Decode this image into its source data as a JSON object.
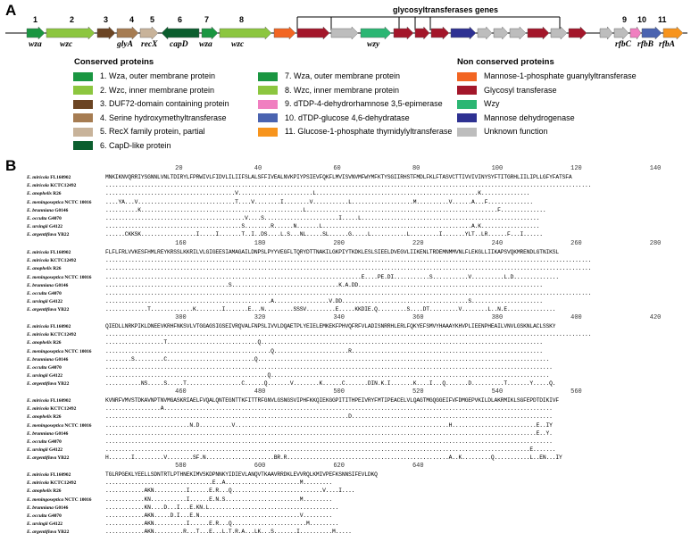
{
  "panel_a": {
    "letter": "A",
    "cluster_title": "glycosyltransferases genes",
    "gene_numbers": [
      "1",
      "2",
      "3",
      "4",
      "5",
      "6",
      "7",
      "8",
      "9",
      "10",
      "11"
    ],
    "gene_names": [
      "wza",
      "wzc",
      "glyA",
      "recX",
      "capD",
      "wza",
      "wzc",
      "wzy",
      "rfbC",
      "rfbB",
      "rfbA"
    ],
    "conserved_title": "Conserved proteins",
    "conserved": [
      {
        "label": "1. Wza, outer membrane protein",
        "color": "#1a9641"
      },
      {
        "label": "2. Wzc, inner membrane protein",
        "color": "#8cc63f"
      },
      {
        "label": "3. DUF72-domain containing protein",
        "color": "#6b4423"
      },
      {
        "label": "4. Serine hydroxymethyltransferase",
        "color": "#a67c52"
      },
      {
        "label": "5. RecX family protein, partial",
        "color": "#c8b39a"
      },
      {
        "label": "6. CapD-like protein",
        "color": "#0b5e2e"
      },
      {
        "label": "7. Wza, outer membrane protein",
        "color": "#1a9641"
      },
      {
        "label": "8. Wzc, inner membrane protein",
        "color": "#8cc63f"
      },
      {
        "label": "9. dTDP-4-dehydrorhamnose 3,5-epimerase",
        "color": "#f07fc0"
      },
      {
        "label": "10. dTDP-glucose 4,6-dehydratase",
        "color": "#4a63b0"
      },
      {
        "label": "11. Glucose-1-phosphate thymidylyltransferase",
        "color": "#f7941d"
      }
    ],
    "nonconserved_title": "Non conserved proteins",
    "nonconserved": [
      {
        "label": "Mannose-1-phosphate guanylyltransferase",
        "color": "#f26522"
      },
      {
        "label": "Glycosyl transferase",
        "color": "#a3162a"
      },
      {
        "label": "Wzy",
        "color": "#2bb673"
      },
      {
        "label": "Mannose dehydrogenase",
        "color": "#2e3192"
      },
      {
        "label": "Unknown function",
        "color": "#bdbdbd"
      }
    ]
  },
  "panel_b": {
    "letter": "B",
    "species": [
      {
        "genus": "E. miricola",
        "strain": "FL160902"
      },
      {
        "genus": "E. miricola",
        "strain": "KCTC12492"
      },
      {
        "genus": "E. anophelis",
        "strain": "R26"
      },
      {
        "genus": "E. meningoseptica",
        "strain": "NCTC 10016"
      },
      {
        "genus": "E. brunniana",
        "strain": "G0146"
      },
      {
        "genus": "E. occulta",
        "strain": "G4070"
      },
      {
        "genus": "E. ursingii",
        "strain": "G4122"
      },
      {
        "genus": "E. argentiflava",
        "strain": "YB22"
      }
    ],
    "blocks": [
      {
        "ticks": [
          "20",
          "40",
          "60",
          "80",
          "100",
          "120",
          "140"
        ],
        "rows": [
          "MNKIKNVQRRIYSGNNLVNLTDIRYLFPRWIVLFIDVLILIIFSLALSFFIVEALNVKPIYPSIEVFQKFLMVISVNVMFWYMFKTYSGIIRHSTFMDLFKLFTASVCTTIVVIVINYSYFTITGRHLIILIPLLGFYFATSFA",
          "......................................................................................................................................................",
          "........................................V.......................L..................................................K...............",
          "....YA...V..............................T....V........I........V...........L...................M..........V......A...F..............",
          "..........K..................................................L...........................................................F..............",
          "...........................................V....S.......................I.....L.......................................................",
          "..........................................S........R......N.......L..............................................A.K..................",
          "......CKKSK.................I.....I.......T..I..DS....L.S...NL.....SL......G.....L...........L.........I.......YLT..LR......F...I......"
        ]
      },
      {
        "ticks": [
          "160",
          "180",
          "200",
          "220",
          "240",
          "260",
          "280"
        ],
        "rows": [
          "FLFLFRLVVKESFHMLREYKRSSLKKRILVLGIGEESIAMAGAILDNPSLPYYVEGFLTQRYDTTNAKILGKPIYTKDKLESLSIEELDVEGVLIIKENLTRDEMNMMVNLFLEKGLLIIKAPSVQKMRENDLGTNIKSL",
          "......................................................................................................................................................",
          "......................................................................................................................................................",
          "...............................................................................E....PE.DI...........S...........V..........L.D..............",
          "......................................S.................................K.A.DD.........................................................",
          "......................................................................................................................................................",
          "...................................................A.................V.DD.......................................S......................",
          ".............T.............K........I.......E...N.........SSSV.........E.....KKDIE.Q.........S....DT.........V........L..N.E..............."
        ]
      },
      {
        "ticks": [
          "300",
          "320",
          "340",
          "360",
          "380",
          "400",
          "420"
        ],
        "rows": [
          "QIEDLLNRKPIKLDNEEVKRHFNKSVLVTGGAGSIGSEIVRQVALFNPSLIVVLDQAETPLYEIELEMKEKFPHVQFRFVLADISNRRHLERLFQKYEFSMVYHAAAYKHVPLIEENPHEAILVNVLGSKNLACLSSKY",
          "......................................................................................................................................................",
          "..................T............................Q.......................................................................................",
          "...................................................Q.......................R...........................................................",
          "........S.........C...........................Q..........................................................................................",
          "..........................................................................................................................................",
          "..................................................Q......................................................................................",
          "...........NS.....S.....T.................C......Q.......V........K......C.......DIN.K.I.......K....I...Q.......D..........T.......Y.....Q."
        ]
      },
      {
        "ticks": [
          "460",
          "480",
          "500",
          "520",
          "540",
          "560"
        ],
        "rows": [
          "KVNRFVMVSTDKAVNPTNVMGASKRIAELFVQALQNTEGNTTKFITTRFGNVLGSNGSVIPHFKKQIEKGGPITITHPEIVRYFMTIPEACELVLQAGTMGQGGEIFVFDMGEPVKILDLAKRMIKLSGFEPDTDIKIVF",
          ".................A........................................................................................................................",
          "...........................................................................D..............................................................",
          "..........................N.D..........V..................................................................H..........................E..IY",
          ".....................................................................................................................................E..Y.",
          "..........................................................................................................................................",
          "...................................................................................................................................E.......",
          "H.......I.........V........SF.N.....................BR.R..................................................A..K.........Q...........L..EN...IY"
        ]
      },
      {
        "ticks": [
          "580",
          "600",
          "620",
          "640"
        ],
        "rows": [
          "TGLRPGEKLYEELLSDNTRTLPTHNEKIMVSKDPNNKYIDIEVLANQVTKAAVRRDKLEVVRQLKMIVPEFKSNNSIFEVLDKQ",
          ".................................E..A.......................M.........",
          "............AKN..........I......E.R...Q............................V....I....",
          "............KN...........I......E.N.S.......................M.........",
          "............KN....D...I...E.KN.L........................................",
          "............AKN.....D.I...E.N...............................V.........",
          "............AKN..........I......E.R...Q.......................M.........",
          "............AKN.........R...T...E...L.T.R.A...LK...S.......I..........M....."
        ]
      }
    ]
  }
}
